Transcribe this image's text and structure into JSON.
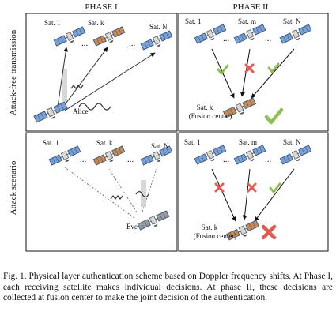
{
  "headers": {
    "phase1": "PHASE I",
    "phase2": "PHASE II"
  },
  "rows": {
    "top": "Attack-free transmission",
    "bottom": "Attack scenario"
  },
  "satellites": {
    "s1": "Sat. 1",
    "sk": "Sat. k",
    "sm": "Sat. m",
    "sn": "Sat. N",
    "dots": "..."
  },
  "actors": {
    "alice": "Alice",
    "eve": "Eve"
  },
  "fusion": {
    "line1": "Sat. k",
    "line2": "(Fusion center)"
  },
  "colors": {
    "satellite": "#7aa0d4",
    "satellite_dark": "#2f4f7f",
    "sat_k": "#c98a52",
    "check": "#8cc152",
    "cross": "#e05a4f"
  },
  "caption": "Fig. 1.  Physical layer authentication scheme based on Doppler frequency shifts. At Phase I, each receiving satellite makes individual decisions. At phase II, these decisions are collected at fusion center to make the joint decision of the authentication."
}
